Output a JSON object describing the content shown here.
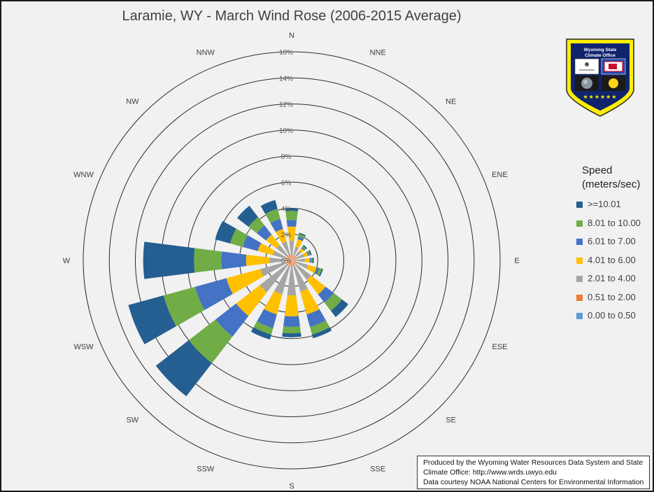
{
  "chart_data": {
    "type": "wind-rose",
    "title": "Laramie, WY - March Wind Rose (2006-2015 Average)",
    "directions": [
      "N",
      "NNE",
      "NE",
      "ENE",
      "E",
      "ESE",
      "SE",
      "SSE",
      "S",
      "SSW",
      "SW",
      "WSW",
      "W",
      "WNW",
      "NW",
      "NNW"
    ],
    "radial_ticks": [
      "0%",
      "2%",
      "4%",
      "6%",
      "8%",
      "10%",
      "12%",
      "14%",
      "16%"
    ],
    "rmax": 16,
    "legend_title_lines": [
      "Speed",
      "(meters/sec)"
    ],
    "series": [
      {
        "name": "0.00 to 0.50",
        "color": "#5b9bd5",
        "values": [
          0.1,
          0.1,
          0.1,
          0.1,
          0.1,
          0.1,
          0.1,
          0.1,
          0.1,
          0.1,
          0.1,
          0.1,
          0.1,
          0.1,
          0.1,
          0.1
        ]
      },
      {
        "name": "0.51 to 2.00",
        "color": "#ed7d31",
        "values": [
          0.4,
          0.3,
          0.3,
          0.3,
          0.3,
          0.3,
          0.3,
          0.4,
          0.4,
          0.4,
          0.4,
          0.4,
          0.4,
          0.4,
          0.4,
          0.4
        ]
      },
      {
        "name": "2.01 to 4.00",
        "color": "#a5a5a5",
        "values": [
          1.0,
          0.7,
          0.5,
          0.6,
          0.6,
          0.9,
          1.5,
          2.0,
          2.2,
          2.2,
          2.6,
          2.0,
          1.2,
          1.0,
          1.0,
          1.0
        ]
      },
      {
        "name": "4.01 to 6.00",
        "color": "#ffc000",
        "values": [
          1.1,
          0.6,
          0.3,
          0.3,
          0.4,
          0.7,
          1.4,
          1.8,
          1.6,
          1.6,
          2.3,
          2.7,
          1.8,
          1.2,
          1.0,
          1.0
        ]
      },
      {
        "name": "6.01 to 7.00",
        "color": "#4472c4",
        "values": [
          0.5,
          0.2,
          0.1,
          0.1,
          0.1,
          0.2,
          0.8,
          1.0,
          0.8,
          1.1,
          2.0,
          2.5,
          1.9,
          1.2,
          0.9,
          0.8
        ]
      },
      {
        "name": "8.01 to 10.00",
        "color": "#70ad47",
        "values": [
          0.7,
          0.2,
          0.1,
          0.1,
          0.1,
          0.2,
          0.8,
          0.6,
          0.5,
          0.5,
          2.6,
          2.5,
          2.1,
          1.0,
          0.8,
          0.8
        ]
      },
      {
        "name": ">=10.01",
        "color": "#255e91",
        "values": [
          0.2,
          0.1,
          0.1,
          0.1,
          0.1,
          0.1,
          0.6,
          0.3,
          0.3,
          0.4,
          3.2,
          2.8,
          3.9,
          1.2,
          1.1,
          0.7
        ]
      }
    ]
  },
  "credit_lines": [
    "Produced by the Wyoming Water Resources Data System and State",
    "Climate Office: http://www.wrds.uwyo.edu",
    "Data courtesy NOAA National Centers for Environmental Information"
  ],
  "logo": {
    "text_lines": [
      "Wyoming State",
      "Climate Office"
    ],
    "colors": {
      "shield": "#ffee00",
      "body": "#10246e",
      "flag_red": "#c8102e",
      "sun": "#ffd21a"
    }
  }
}
